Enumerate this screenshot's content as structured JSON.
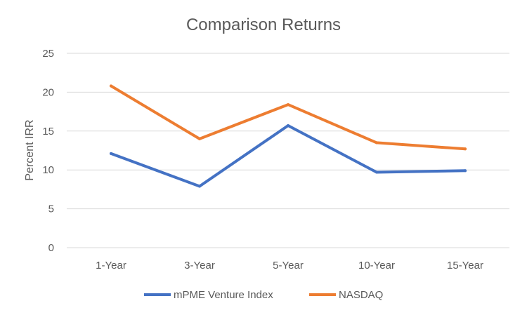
{
  "chart_data": {
    "type": "line",
    "title": "Comparison Returns",
    "ylabel": "Percent IRR",
    "xlabel": "",
    "categories": [
      "1-Year",
      "3-Year",
      "5-Year",
      "10-Year",
      "15-Year"
    ],
    "ylim": [
      0,
      25
    ],
    "yticks": [
      0,
      5,
      10,
      15,
      20,
      25
    ],
    "grid": true,
    "legend_position": "bottom",
    "series": [
      {
        "name": "mPME Venture Index",
        "color": "#4472c4",
        "values": [
          12.1,
          7.9,
          15.7,
          9.7,
          9.9
        ]
      },
      {
        "name": "NASDAQ",
        "color": "#ed7d31",
        "values": [
          20.8,
          14.0,
          18.4,
          13.5,
          12.7
        ]
      }
    ]
  }
}
